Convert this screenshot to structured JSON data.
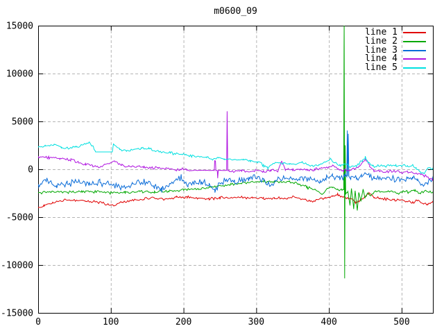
{
  "chart_data": {
    "type": "line",
    "title": "m0600_09",
    "xlabel": "",
    "ylabel": "",
    "xlim": [
      0,
      543
    ],
    "ylim": [
      -15000,
      15000
    ],
    "xticks": [
      0,
      100,
      200,
      300,
      400,
      500
    ],
    "yticks": [
      -15000,
      -10000,
      -5000,
      0,
      5000,
      10000,
      15000
    ],
    "grid": true,
    "legend_position": "top-right-inside",
    "colors": {
      "background": "#ffffff",
      "border": "#000000",
      "grid": "#b4b4b4",
      "text": "#000000"
    },
    "series": [
      {
        "name": "line 1",
        "color": "#e00000",
        "noise": 170,
        "trend": [
          [
            0,
            -4050
          ],
          [
            8,
            -3750
          ],
          [
            20,
            -3500
          ],
          [
            35,
            -3250
          ],
          [
            50,
            -3250
          ],
          [
            65,
            -3350
          ],
          [
            80,
            -3400
          ],
          [
            95,
            -3650
          ],
          [
            105,
            -3780
          ],
          [
            115,
            -3450
          ],
          [
            130,
            -3250
          ],
          [
            145,
            -3100
          ],
          [
            160,
            -3000
          ],
          [
            175,
            -3120
          ],
          [
            190,
            -2950
          ],
          [
            205,
            -2900
          ],
          [
            220,
            -3020
          ],
          [
            235,
            -3120
          ],
          [
            250,
            -3000
          ],
          [
            265,
            -2950
          ],
          [
            280,
            -2900
          ],
          [
            295,
            -2970
          ],
          [
            310,
            -3020
          ],
          [
            325,
            -3000
          ],
          [
            340,
            -3020
          ],
          [
            355,
            -2900
          ],
          [
            367,
            -3120
          ],
          [
            375,
            -3420
          ],
          [
            385,
            -3200
          ],
          [
            395,
            -2950
          ],
          [
            405,
            -2820
          ],
          [
            412,
            -2620
          ],
          [
            420,
            -2900
          ],
          [
            430,
            -3120
          ],
          [
            437,
            -3500
          ],
          [
            445,
            -3120
          ],
          [
            450,
            -2820
          ],
          [
            455,
            -2520
          ],
          [
            462,
            -2920
          ],
          [
            470,
            -3050
          ],
          [
            480,
            -3120
          ],
          [
            490,
            -3270
          ],
          [
            500,
            -3200
          ],
          [
            508,
            -3370
          ],
          [
            515,
            -3470
          ],
          [
            522,
            -3270
          ],
          [
            530,
            -3570
          ],
          [
            536,
            -3720
          ],
          [
            543,
            -3430
          ]
        ]
      },
      {
        "name": "line 2",
        "color": "#00a800",
        "noise": 180,
        "trend": [
          [
            0,
            -2450
          ],
          [
            20,
            -2350
          ],
          [
            40,
            -2420
          ],
          [
            60,
            -2300
          ],
          [
            80,
            -2370
          ],
          [
            100,
            -2450
          ],
          [
            120,
            -2400
          ],
          [
            140,
            -2330
          ],
          [
            160,
            -2400
          ],
          [
            180,
            -2300
          ],
          [
            200,
            -2150
          ],
          [
            220,
            -2050
          ],
          [
            235,
            -1900
          ],
          [
            250,
            -1800
          ],
          [
            265,
            -1600
          ],
          [
            280,
            -1450
          ],
          [
            295,
            -1350
          ],
          [
            310,
            -1300
          ],
          [
            325,
            -1250
          ],
          [
            335,
            -1350
          ],
          [
            345,
            -1250
          ],
          [
            358,
            -1500
          ],
          [
            370,
            -1900
          ],
          [
            380,
            -2100
          ],
          [
            390,
            -2600
          ],
          [
            398,
            -2000
          ],
          [
            405,
            -1850
          ],
          [
            412,
            -2100
          ],
          [
            418,
            -2150
          ],
          [
            420.3,
            -2100,
            0.3
          ],
          [
            420.9,
            15500,
            0
          ],
          [
            421.6,
            -11400,
            0
          ],
          [
            422.3,
            2500,
            0
          ],
          [
            423,
            -2600,
            0.3
          ],
          [
            426,
            -2300,
            0.5
          ],
          [
            429,
            -3800,
            0.5
          ],
          [
            431,
            -2000,
            0.5
          ],
          [
            434,
            -4150,
            0.5
          ],
          [
            436,
            -2300,
            0.5
          ],
          [
            439,
            -4300,
            0.5
          ],
          [
            441,
            -2400,
            0.5
          ],
          [
            444,
            -3300,
            0.5
          ],
          [
            447,
            -2100
          ],
          [
            450,
            -3000
          ],
          [
            453,
            -2400
          ],
          [
            458,
            -2700
          ],
          [
            464,
            -2350
          ],
          [
            470,
            -2300
          ],
          [
            478,
            -2450
          ],
          [
            486,
            -2200
          ],
          [
            494,
            -2500
          ],
          [
            502,
            -2300
          ],
          [
            510,
            -2420
          ],
          [
            518,
            -2250
          ],
          [
            526,
            -2480
          ],
          [
            534,
            -2300
          ],
          [
            543,
            -2420
          ]
        ]
      },
      {
        "name": "line 3",
        "color": "#0a6cd8",
        "noise": 430,
        "trend": [
          [
            0,
            -1650
          ],
          [
            12,
            -1100
          ],
          [
            25,
            -1750
          ],
          [
            40,
            -1500
          ],
          [
            55,
            -1300
          ],
          [
            70,
            -1650
          ],
          [
            85,
            -1400
          ],
          [
            100,
            -1500
          ],
          [
            115,
            -1850
          ],
          [
            130,
            -1600
          ],
          [
            145,
            -1300
          ],
          [
            160,
            -1750
          ],
          [
            170,
            -2150
          ],
          [
            180,
            -1700
          ],
          [
            190,
            -1100
          ],
          [
            197,
            -850
          ],
          [
            206,
            -1550
          ],
          [
            215,
            -1250
          ],
          [
            225,
            -1350
          ],
          [
            235,
            -1450
          ],
          [
            243,
            -2150
          ],
          [
            252,
            -1350
          ],
          [
            260,
            -1150
          ],
          [
            270,
            -1250
          ],
          [
            280,
            -1050
          ],
          [
            290,
            -950
          ],
          [
            300,
            -850
          ],
          [
            310,
            -1150
          ],
          [
            320,
            -1650
          ],
          [
            330,
            -1050
          ],
          [
            340,
            -950
          ],
          [
            350,
            -1050
          ],
          [
            360,
            -850
          ],
          [
            370,
            -950
          ],
          [
            380,
            -1150
          ],
          [
            388,
            -1450
          ],
          [
            396,
            -950
          ],
          [
            405,
            -750
          ],
          [
            415,
            -850
          ],
          [
            422,
            -750
          ],
          [
            424.6,
            -780,
            0.3
          ],
          [
            425.2,
            4050,
            0
          ],
          [
            425.9,
            -720,
            0
          ],
          [
            426.6,
            3700,
            0
          ],
          [
            427.4,
            -850,
            0.3
          ],
          [
            430,
            -850
          ],
          [
            438,
            -950
          ],
          [
            445,
            -550
          ],
          [
            450,
            -350
          ],
          [
            455,
            -750
          ],
          [
            462,
            -950
          ],
          [
            470,
            -850
          ],
          [
            480,
            -950
          ],
          [
            490,
            -1050
          ],
          [
            500,
            -950
          ],
          [
            508,
            -1150
          ],
          [
            515,
            -950
          ],
          [
            522,
            -1150
          ],
          [
            530,
            -1750
          ],
          [
            535,
            -1350
          ],
          [
            543,
            -980
          ]
        ]
      },
      {
        "name": "line 4",
        "color": "#b014e0",
        "noise": 180,
        "trend": [
          [
            0,
            1260
          ],
          [
            15,
            1200
          ],
          [
            30,
            1150
          ],
          [
            45,
            950
          ],
          [
            55,
            760
          ],
          [
            65,
            560
          ],
          [
            75,
            360
          ],
          [
            85,
            160
          ],
          [
            95,
            560
          ],
          [
            105,
            880
          ],
          [
            115,
            460
          ],
          [
            125,
            260
          ],
          [
            135,
            310
          ],
          [
            145,
            260
          ],
          [
            155,
            110
          ],
          [
            165,
            160
          ],
          [
            175,
            60
          ],
          [
            185,
            -60
          ],
          [
            195,
            10
          ],
          [
            205,
            -60
          ],
          [
            215,
            -100,
            0.5
          ],
          [
            222,
            -110,
            0.15
          ],
          [
            242.3,
            -110,
            0.15
          ],
          [
            242.9,
            900,
            0
          ],
          [
            243.9,
            860,
            0
          ],
          [
            244.5,
            -110,
            0.15
          ],
          [
            246.4,
            -110,
            0.15
          ],
          [
            247,
            -930,
            0
          ],
          [
            247.7,
            -110,
            0.15
          ],
          [
            258.5,
            -110,
            0.15
          ],
          [
            259.3,
            -110,
            0.15
          ],
          [
            260,
            6060,
            0
          ],
          [
            260.8,
            -160,
            0.2
          ],
          [
            263,
            -180,
            0.5
          ],
          [
            270,
            -220
          ],
          [
            280,
            -160
          ],
          [
            290,
            -260
          ],
          [
            300,
            -110
          ],
          [
            310,
            -210
          ],
          [
            320,
            -110
          ],
          [
            330,
            -160
          ],
          [
            335,
            860,
            0.3
          ],
          [
            340,
            -10
          ],
          [
            350,
            -110
          ],
          [
            360,
            -10
          ],
          [
            370,
            -110
          ],
          [
            380,
            -10
          ],
          [
            390,
            110
          ],
          [
            398,
            160
          ],
          [
            405,
            420
          ],
          [
            412,
            110
          ],
          [
            420,
            -110
          ],
          [
            428,
            -60
          ],
          [
            435,
            10
          ],
          [
            442,
            310
          ],
          [
            450,
            1060
          ],
          [
            456,
            310
          ],
          [
            462,
            -110
          ],
          [
            470,
            -210
          ],
          [
            480,
            -260
          ],
          [
            490,
            -210
          ],
          [
            500,
            -310
          ],
          [
            508,
            -260
          ],
          [
            515,
            -360
          ],
          [
            522,
            -460
          ],
          [
            530,
            -610
          ],
          [
            536,
            -810
          ],
          [
            543,
            -1060
          ]
        ]
      },
      {
        "name": "line 5",
        "color": "#00e0e0",
        "noise": 180,
        "trend": [
          [
            0,
            2300
          ],
          [
            10,
            2450
          ],
          [
            22,
            2620
          ],
          [
            32,
            2300
          ],
          [
            42,
            2160
          ],
          [
            52,
            2300
          ],
          [
            62,
            2520
          ],
          [
            70,
            2820
          ],
          [
            76,
            2300
          ],
          [
            79,
            1810,
            0
          ],
          [
            102,
            1810,
            0
          ],
          [
            103.5,
            2620,
            0.3
          ],
          [
            112,
            2120
          ],
          [
            122,
            1960
          ],
          [
            132,
            2060
          ],
          [
            142,
            2220
          ],
          [
            152,
            2120
          ],
          [
            162,
            1920
          ],
          [
            172,
            1760
          ],
          [
            182,
            1710
          ],
          [
            192,
            1560
          ],
          [
            202,
            1510
          ],
          [
            212,
            1410
          ],
          [
            222,
            1310
          ],
          [
            232,
            1160
          ],
          [
            240,
            1060
          ],
          [
            248,
            1160
          ],
          [
            256,
            1060,
            0.4
          ],
          [
            270,
            1010,
            0.4
          ],
          [
            282,
            1010,
            0.6
          ],
          [
            292,
            910
          ],
          [
            302,
            760
          ],
          [
            310,
            410
          ],
          [
            316,
            160
          ],
          [
            322,
            560
          ],
          [
            330,
            710
          ],
          [
            338,
            660
          ],
          [
            346,
            510
          ],
          [
            354,
            610
          ],
          [
            362,
            710
          ],
          [
            370,
            460
          ],
          [
            378,
            310
          ],
          [
            386,
            510
          ],
          [
            394,
            710
          ],
          [
            402,
            1060
          ],
          [
            408,
            610
          ],
          [
            415,
            410
          ],
          [
            422,
            510
          ],
          [
            430,
            260
          ],
          [
            438,
            410
          ],
          [
            446,
            910
          ],
          [
            450,
            1310
          ],
          [
            454,
            710
          ],
          [
            460,
            310
          ],
          [
            468,
            410
          ],
          [
            476,
            310
          ],
          [
            484,
            460
          ],
          [
            492,
            310
          ],
          [
            500,
            410
          ],
          [
            508,
            310
          ],
          [
            515,
            410
          ],
          [
            520,
            110
          ],
          [
            526,
            -340
          ],
          [
            531,
            -440
          ],
          [
            536,
            110
          ],
          [
            543,
            10
          ]
        ]
      }
    ]
  }
}
